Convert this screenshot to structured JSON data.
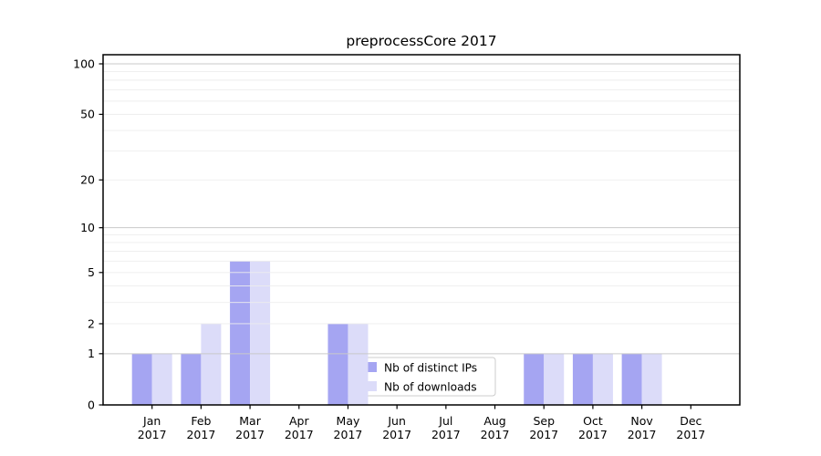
{
  "chart_data": {
    "type": "bar",
    "title": "preprocessCore 2017",
    "categories": [
      "Jan",
      "Feb",
      "Mar",
      "Apr",
      "May",
      "Jun",
      "Jul",
      "Aug",
      "Sep",
      "Oct",
      "Nov",
      "Dec"
    ],
    "year_label": "2017",
    "series": [
      {
        "name": "Nb of distinct IPs",
        "color": "#a5a5f2",
        "values": [
          1,
          1,
          6,
          0,
          2,
          0,
          0,
          0,
          1,
          1,
          1,
          0
        ]
      },
      {
        "name": "Nb of downloads",
        "color": "#dcdcf9",
        "values": [
          1,
          2,
          6,
          0,
          2,
          0,
          0,
          0,
          1,
          1,
          1,
          0
        ]
      }
    ],
    "yscale": "log1p",
    "ylim": [
      0,
      100
    ],
    "yticks": [
      0,
      1,
      2,
      5,
      10,
      20,
      50,
      100
    ],
    "major_gridlines": [
      1,
      10,
      100
    ],
    "minor_gridlines": [
      2,
      3,
      4,
      5,
      6,
      7,
      8,
      9,
      20,
      30,
      40,
      50,
      60,
      70,
      80,
      90
    ],
    "grid": true,
    "legend_position": "lower-center",
    "colors": {
      "axis": "#000000",
      "major_grid": "#c9c9c9",
      "minor_grid": "#ededed",
      "legend_border": "#cccccc",
      "legend_bg": "rgba(255,255,255,0.85)",
      "text": "#000000"
    }
  }
}
